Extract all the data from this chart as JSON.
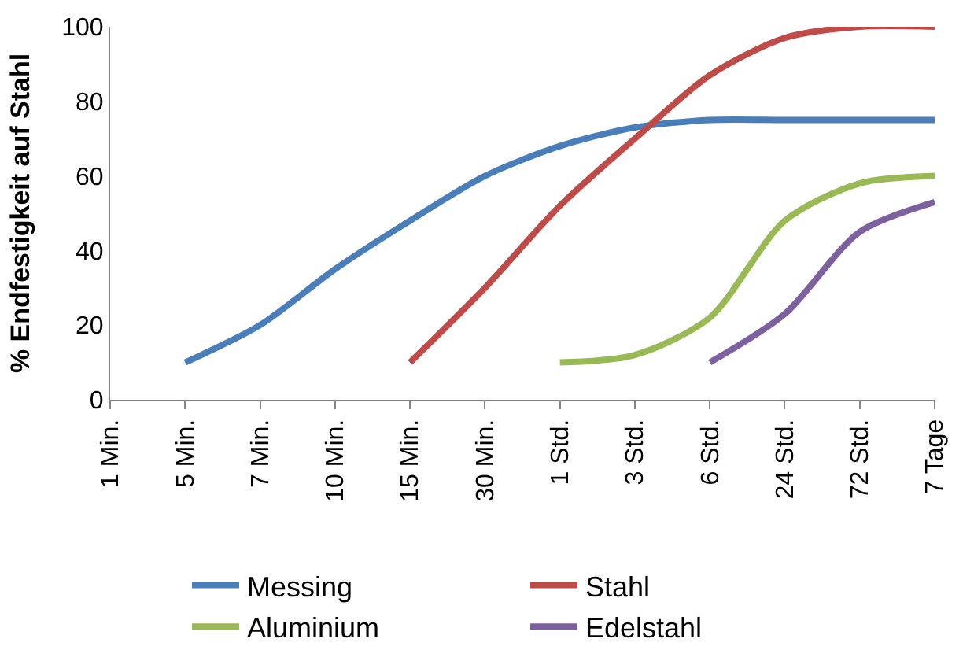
{
  "chart_data": {
    "type": "line",
    "ylabel": "% Endfestigkeit auf Stahl",
    "categories": [
      "1 Min.",
      "5 Min.",
      "7 Min.",
      "10 Min.",
      "15 Min.",
      "30 Min.",
      "1 Std.",
      "3 Std.",
      "6 Std.",
      "24 Std.",
      "72 Std.",
      "7 Tage"
    ],
    "series": [
      {
        "name": "Messing",
        "color": "#4a7ebb",
        "values": [
          null,
          10,
          20,
          35,
          48,
          60,
          68,
          73,
          75,
          75,
          75,
          75
        ]
      },
      {
        "name": "Stahl",
        "color": "#be4b48",
        "values": [
          null,
          null,
          null,
          null,
          10,
          30,
          52,
          70,
          87,
          97,
          100,
          100
        ]
      },
      {
        "name": "Aluminium",
        "color": "#98b954",
        "values": [
          null,
          null,
          null,
          null,
          null,
          null,
          10,
          12,
          22,
          48,
          58,
          60
        ]
      },
      {
        "name": "Edelstahl",
        "color": "#7d60a0",
        "values": [
          null,
          null,
          null,
          null,
          null,
          null,
          null,
          null,
          10,
          23,
          45,
          53
        ]
      }
    ],
    "ylim": [
      0,
      100
    ],
    "yticks": [
      0,
      20,
      40,
      60,
      80,
      100
    ],
    "legend": "bottom",
    "marker": "none",
    "line_style": "solid"
  }
}
